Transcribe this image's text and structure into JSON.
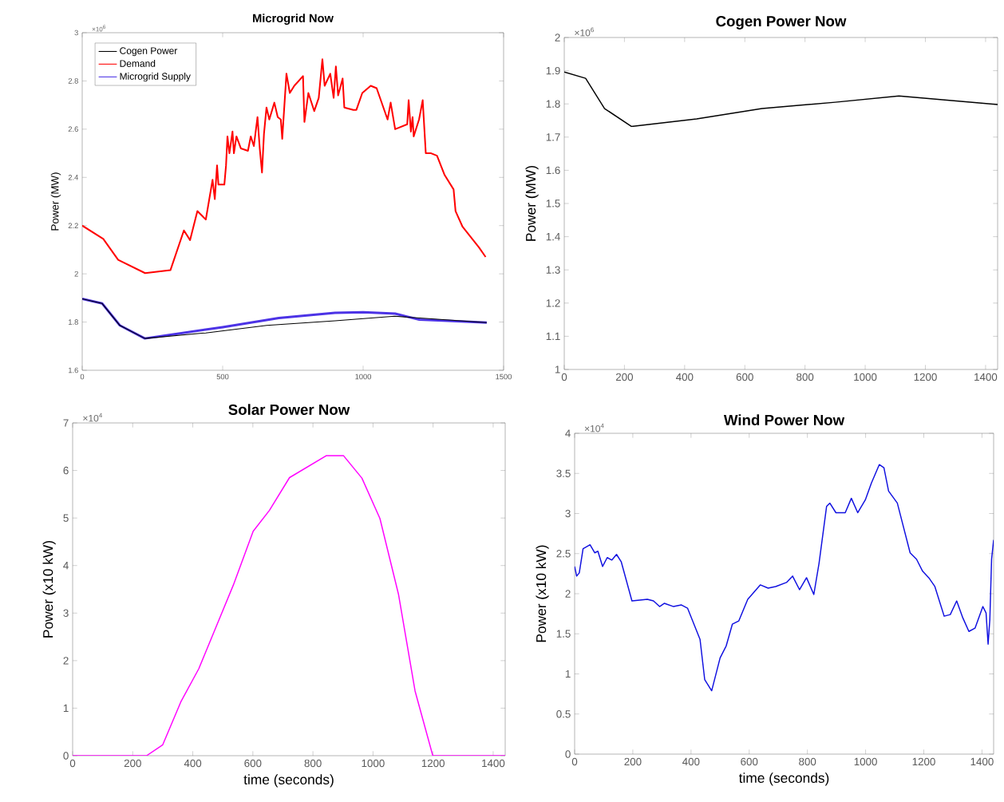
{
  "chart_data": [
    {
      "type": "line",
      "title": "Microgrid Now",
      "ylabel": "Power (MW)",
      "annotations": [
        "×10$^{6}$"
      ],
      "legend": "top left",
      "xlim": [
        0,
        1500
      ],
      "xticks": [
        0,
        500,
        1000,
        1500
      ],
      "ylim": [
        1.6,
        3
      ],
      "yticks": [
        1.6,
        1.8,
        2,
        2.2,
        2.4,
        2.6,
        2.8,
        3
      ],
      "series": [
        {
          "name": "Cogen Power",
          "color": "#000000",
          "x": [
            0,
            71,
            134,
            223,
            440,
            657,
            900,
            1112,
            1440
          ],
          "values": [
            1.896,
            1.877,
            1.786,
            1.732,
            1.755,
            1.786,
            1.805,
            1.824,
            1.798
          ]
        },
        {
          "name": "Demand",
          "color": "#ff0000",
          "x": [
            0,
            75,
            128,
            224,
            314,
            362,
            384,
            410,
            440,
            464,
            472,
            480,
            485,
            506,
            512,
            517,
            524,
            535,
            540,
            549,
            565,
            590,
            600,
            611,
            624,
            632,
            640,
            647,
            656,
            666,
            684,
            696,
            707,
            712,
            727,
            739,
            755,
            786,
            791,
            805,
            826,
            842,
            855,
            863,
            883,
            895,
            903,
            911,
            927,
            933,
            965,
            976,
            997,
            1027,
            1048,
            1087,
            1098,
            1114,
            1157,
            1162,
            1170,
            1176,
            1180,
            1199,
            1212,
            1223,
            1242,
            1263,
            1290,
            1322,
            1329,
            1354,
            1412,
            1436
          ],
          "values": [
            2.2,
            2.145,
            2.058,
            2.003,
            2.015,
            2.18,
            2.14,
            2.26,
            2.225,
            2.39,
            2.31,
            2.45,
            2.37,
            2.37,
            2.45,
            2.57,
            2.5,
            2.59,
            2.5,
            2.57,
            2.52,
            2.51,
            2.57,
            2.53,
            2.65,
            2.52,
            2.42,
            2.58,
            2.69,
            2.64,
            2.71,
            2.65,
            2.64,
            2.56,
            2.83,
            2.75,
            2.78,
            2.82,
            2.63,
            2.75,
            2.675,
            2.73,
            2.89,
            2.78,
            2.83,
            2.73,
            2.86,
            2.74,
            2.81,
            2.69,
            2.68,
            2.68,
            2.75,
            2.78,
            2.77,
            2.64,
            2.71,
            2.6,
            2.62,
            2.72,
            2.59,
            2.65,
            2.57,
            2.64,
            2.72,
            2.5,
            2.5,
            2.49,
            2.41,
            2.35,
            2.26,
            2.195,
            2.11,
            2.07
          ]
        },
        {
          "name": "Microgrid Supply",
          "color": "#4c33e6",
          "x": [
            0,
            71,
            134,
            223,
            300,
            500,
            700,
            900,
            1000,
            1114,
            1200,
            1300,
            1440
          ],
          "values": [
            1.896,
            1.877,
            1.786,
            1.732,
            1.745,
            1.779,
            1.817,
            1.838,
            1.841,
            1.835,
            1.81,
            1.805,
            1.798
          ]
        }
      ]
    },
    {
      "type": "line",
      "title": "Cogen Power Now",
      "ylabel": "Power (MW)",
      "annotations": [
        "×10$^{6}$"
      ],
      "xlim": [
        0,
        1440
      ],
      "xticks": [
        0,
        200,
        400,
        600,
        800,
        1000,
        1200,
        1400
      ],
      "ylim": [
        1,
        2
      ],
      "yticks": [
        1,
        1.1,
        1.2,
        1.3,
        1.4,
        1.5,
        1.6,
        1.7,
        1.8,
        1.9,
        2
      ],
      "series": [
        {
          "color": "#000000",
          "x": [
            0,
            71,
            134,
            223,
            440,
            657,
            900,
            1112,
            1440
          ],
          "values": [
            1.896,
            1.877,
            1.786,
            1.732,
            1.755,
            1.786,
            1.805,
            1.824,
            1.798
          ]
        }
      ]
    },
    {
      "type": "line",
      "title": "Solar Power Now",
      "xlabel": "time (seconds)",
      "ylabel": "Power (x10 kW)",
      "annotations": [
        "×10$^{4}$"
      ],
      "xlim": [
        0,
        1440
      ],
      "xticks": [
        0,
        200,
        400,
        600,
        800,
        1000,
        1200,
        1400
      ],
      "ylim": [
        0,
        7
      ],
      "yticks": [
        0,
        1,
        2,
        3,
        4,
        5,
        6,
        7
      ],
      "series": [
        {
          "color": "#ff00ff",
          "x": [
            0,
            246,
            300,
            360,
            420,
            535,
            601,
            655,
            722,
            844,
            902,
            963,
            1023,
            1085,
            1140,
            1199,
            1440
          ],
          "values": [
            0,
            0,
            0.23,
            1.13,
            1.83,
            3.59,
            4.72,
            5.16,
            5.85,
            6.31,
            6.31,
            5.84,
            4.99,
            3.39,
            1.36,
            0,
            0
          ]
        }
      ]
    },
    {
      "type": "line",
      "title": "Wind Power Now",
      "xlabel": "time (seconds)",
      "ylabel": "Power (x10 kW)",
      "annotations": [
        "×10$^{4}$"
      ],
      "xlim": [
        0,
        1440
      ],
      "xticks": [
        0,
        200,
        400,
        600,
        800,
        1000,
        1200,
        1400
      ],
      "ylim": [
        0,
        4
      ],
      "yticks": [
        0,
        0.5,
        1,
        1.5,
        2,
        2.5,
        3,
        3.5,
        4
      ],
      "series": [
        {
          "color": "#1010e0",
          "x": [
            0,
            7,
            16,
            29,
            53,
            69,
            80,
            96,
            112,
            128,
            144,
            160,
            197,
            250,
            271,
            292,
            308,
            340,
            367,
            388,
            431,
            447,
            471,
            500,
            521,
            542,
            564,
            595,
            638,
            665,
            691,
            728,
            749,
            773,
            797,
            822,
            840,
            866,
            877,
            898,
            930,
            951,
            973,
            999,
            1020,
            1047,
            1063,
            1079,
            1109,
            1153,
            1175,
            1196,
            1217,
            1238,
            1270,
            1291,
            1313,
            1334,
            1355,
            1376,
            1403,
            1414,
            1421,
            1427,
            1433,
            1440
          ],
          "values": [
            2.34,
            2.22,
            2.26,
            2.56,
            2.61,
            2.51,
            2.53,
            2.34,
            2.45,
            2.42,
            2.49,
            2.4,
            1.91,
            1.93,
            1.91,
            1.84,
            1.88,
            1.84,
            1.86,
            1.82,
            1.43,
            0.93,
            0.79,
            1.2,
            1.35,
            1.62,
            1.66,
            1.93,
            2.11,
            2.07,
            2.09,
            2.14,
            2.22,
            2.05,
            2.2,
            1.99,
            2.38,
            3.09,
            3.13,
            3.01,
            3.01,
            3.19,
            3.01,
            3.17,
            3.38,
            3.61,
            3.57,
            3.28,
            3.13,
            2.51,
            2.43,
            2.28,
            2.2,
            2.09,
            1.72,
            1.74,
            1.91,
            1.7,
            1.53,
            1.57,
            1.84,
            1.76,
            1.37,
            1.68,
            2.43,
            2.67
          ]
        }
      ]
    }
  ]
}
